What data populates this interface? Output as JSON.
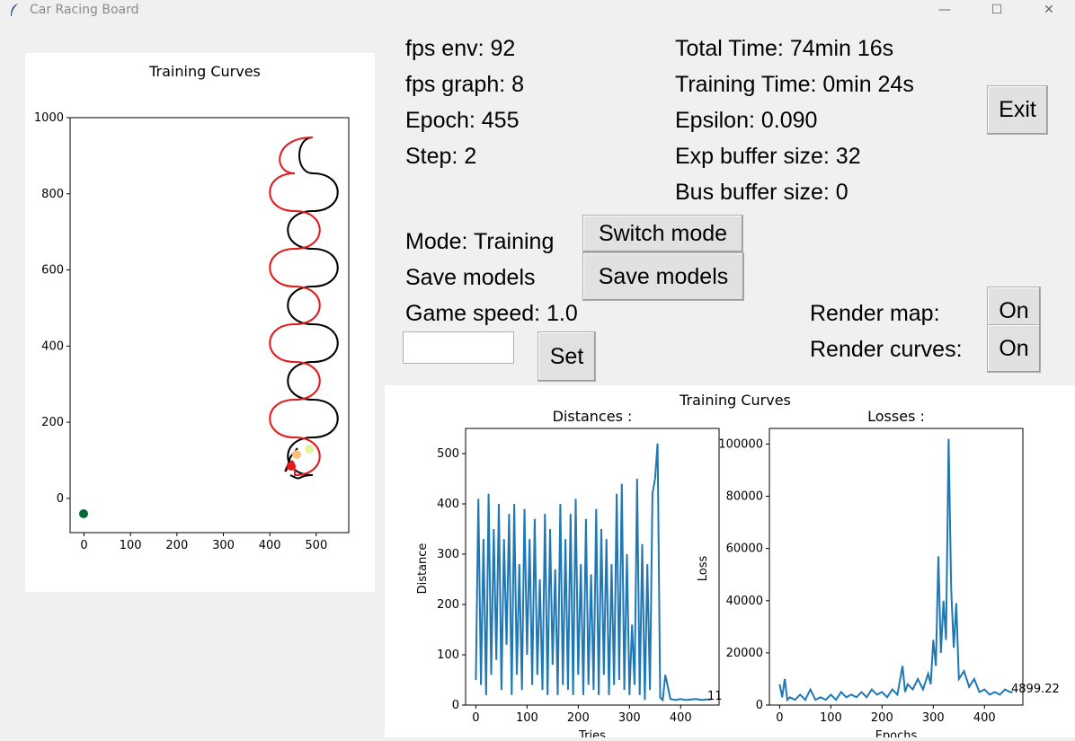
{
  "window": {
    "title": "Car Racing Board",
    "minimize_glyph": "—",
    "maximize_glyph": "☐",
    "close_glyph": "✕",
    "icon": "feather-icon"
  },
  "stats": {
    "fps_env": "fps env: 92",
    "fps_graph": "fps graph: 8",
    "epoch": "Epoch: 455",
    "step": "Step: 2",
    "total_time": "Total Time: 74min 16s",
    "training_time": "Training Time: 0min 24s",
    "epsilon": "Epsilon: 0.090",
    "exp_buffer": "Exp buffer size: 32",
    "bus_buffer": "Bus buffer size: 0"
  },
  "controls": {
    "exit_label": "Exit",
    "mode_label": "Mode: Training",
    "switch_mode_label": "Switch mode",
    "save_models_text": "Save models",
    "save_models_button": "Save models",
    "game_speed_label": "Game speed: 1.0",
    "speed_input_value": "",
    "set_label": "Set",
    "render_map_label": "Render map:",
    "render_map_value": "On",
    "render_curves_label": "Render curves:",
    "render_curves_value": "On"
  },
  "map_plot": {
    "title": "Training Curves",
    "x_ticks": [
      "0",
      "100",
      "200",
      "300",
      "400",
      "500"
    ],
    "y_ticks": [
      "0",
      "200",
      "400",
      "600",
      "800",
      "1000"
    ]
  },
  "curves": {
    "suptitle": "Training Curves",
    "distances": {
      "title": "Distances :",
      "xlabel": "Tries",
      "ylabel": "Distance",
      "last_value": "11",
      "x_ticks": [
        "0",
        "100",
        "200",
        "300",
        "400"
      ],
      "y_ticks": [
        "0",
        "100",
        "200",
        "300",
        "400",
        "500"
      ]
    },
    "losses": {
      "title": "Losses :",
      "xlabel": "Epochs",
      "ylabel": "Loss",
      "last_value": "4899.22",
      "x_ticks": [
        "0",
        "100",
        "200",
        "300",
        "400"
      ],
      "y_ticks": [
        "0",
        "20000",
        "40000",
        "60000",
        "80000",
        "100000"
      ]
    }
  },
  "chart_data": [
    {
      "type": "line",
      "title": "Distances :",
      "xlabel": "Tries",
      "ylabel": "Distance",
      "xlim": [
        -20,
        475
      ],
      "ylim": [
        0,
        550
      ],
      "x": [
        0,
        5,
        10,
        15,
        20,
        25,
        30,
        35,
        40,
        45,
        50,
        55,
        60,
        65,
        70,
        75,
        80,
        85,
        90,
        95,
        100,
        105,
        110,
        115,
        120,
        125,
        130,
        135,
        140,
        145,
        150,
        155,
        160,
        165,
        170,
        175,
        180,
        185,
        190,
        195,
        200,
        205,
        210,
        215,
        220,
        225,
        230,
        235,
        240,
        245,
        250,
        255,
        260,
        265,
        270,
        275,
        280,
        285,
        290,
        295,
        300,
        305,
        310,
        315,
        320,
        325,
        330,
        335,
        340,
        345,
        350,
        355,
        360,
        365,
        370,
        380,
        390,
        400,
        410,
        420,
        430,
        440,
        450,
        460
      ],
      "y": [
        50,
        410,
        40,
        330,
        20,
        420,
        60,
        350,
        90,
        400,
        30,
        330,
        120,
        380,
        20,
        400,
        60,
        280,
        30,
        390,
        100,
        330,
        40,
        370,
        60,
        250,
        30,
        380,
        20,
        350,
        80,
        270,
        20,
        400,
        40,
        330,
        30,
        380,
        20,
        410,
        60,
        280,
        20,
        370,
        40,
        260,
        30,
        390,
        20,
        350,
        60,
        330,
        20,
        280,
        40,
        420,
        50,
        440,
        30,
        300,
        20,
        160,
        40,
        450,
        20,
        320,
        10,
        280,
        30,
        420,
        450,
        520,
        15,
        10,
        60,
        12,
        10,
        12,
        10,
        11,
        12,
        10,
        11,
        11
      ],
      "annotation": "11"
    },
    {
      "type": "line",
      "title": "Losses :",
      "xlabel": "Epochs",
      "ylabel": "Loss",
      "xlim": [
        -20,
        475
      ],
      "ylim": [
        0,
        106000
      ],
      "x": [
        0,
        5,
        10,
        15,
        20,
        30,
        40,
        50,
        60,
        70,
        80,
        90,
        100,
        110,
        120,
        130,
        140,
        150,
        160,
        170,
        180,
        190,
        200,
        210,
        220,
        230,
        240,
        245,
        250,
        260,
        270,
        280,
        290,
        295,
        300,
        305,
        310,
        315,
        320,
        325,
        330,
        335,
        340,
        345,
        350,
        360,
        370,
        380,
        390,
        400,
        410,
        420,
        430,
        440,
        450,
        455
      ],
      "y": [
        8000,
        3000,
        10000,
        2000,
        3000,
        2000,
        4000,
        2000,
        6000,
        2000,
        3000,
        2000,
        4000,
        2000,
        5000,
        3000,
        4000,
        3000,
        5000,
        3000,
        6000,
        4000,
        5000,
        3000,
        6000,
        4000,
        15000,
        5000,
        8000,
        6000,
        10000,
        6000,
        12000,
        8000,
        25000,
        15000,
        57000,
        20000,
        40000,
        25000,
        102000,
        45000,
        22000,
        39000,
        10000,
        13000,
        7000,
        10000,
        5000,
        6000,
        4000,
        5000,
        4000,
        6000,
        5000,
        4899.22
      ],
      "annotation": "4899.22"
    }
  ]
}
